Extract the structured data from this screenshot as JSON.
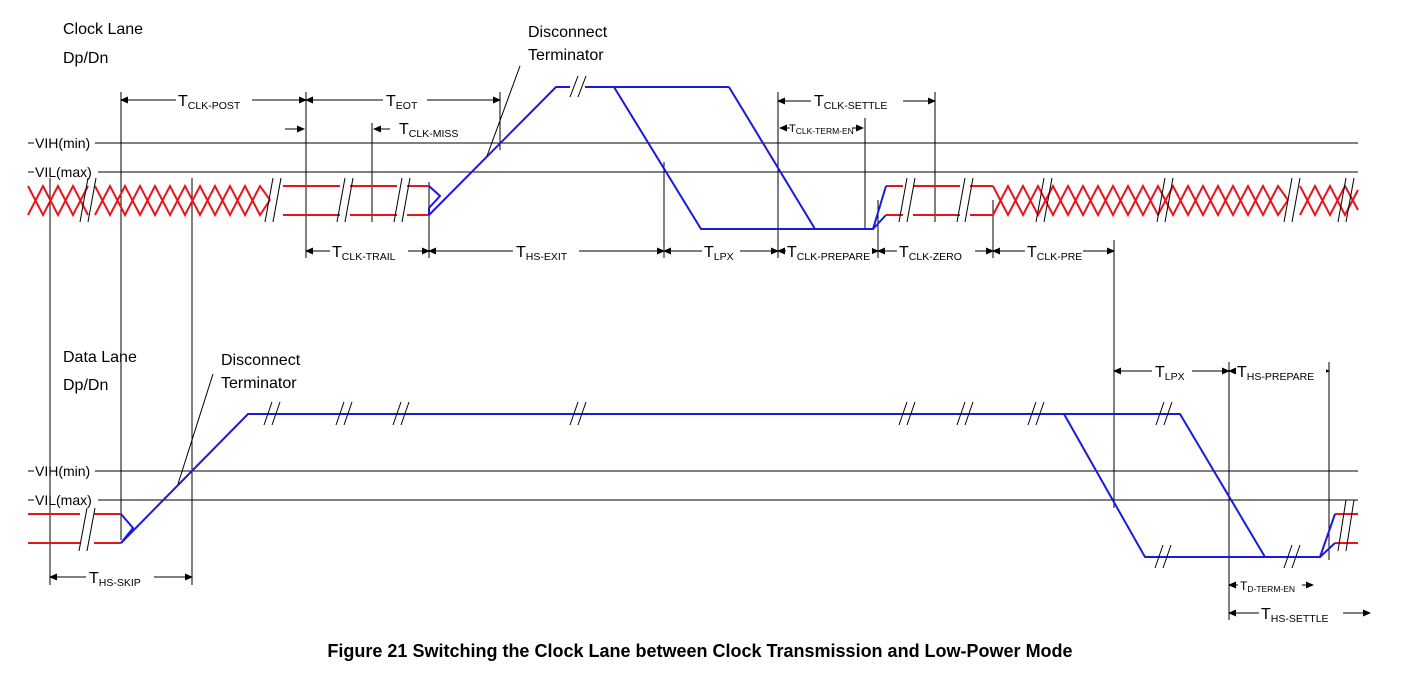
{
  "figure": {
    "caption": "Figure 21 Switching the Clock Lane between Clock Transmission and Low-Power Mode"
  },
  "clock_lane": {
    "title_line1": "Clock Lane",
    "title_line2": "Dp/Dn",
    "note_line1": "Disconnect",
    "note_line2": "Terminator"
  },
  "data_lane": {
    "title_line1": "Data Lane",
    "title_line2": "Dp/Dn",
    "note_line1": "Disconnect",
    "note_line2": "Terminator"
  },
  "levels": {
    "vih": "VIH(min)",
    "vil": "VIL(max)"
  },
  "timings": {
    "clk_post": "CLK-POST",
    "eot": "EOT",
    "clk_miss": "CLK-MISS",
    "clk_settle": "CLK-SETTLE",
    "clk_term_en": "CLK-TERM-EN",
    "clk_trail": "CLK-TRAIL",
    "hs_exit": "HS-EXIT",
    "lpx": "LPX",
    "clk_prepare": "CLK-PREPARE",
    "clk_zero": "CLK-ZERO",
    "clk_pre": "CLK-PRE",
    "lpx_data": "LPX",
    "hs_prepare": "HS-PREPARE",
    "hs_skip": "HS-SKIP",
    "d_term_en": "D-TERM-EN",
    "hs_settle": "HS-SETTLE"
  },
  "t_symbol": "T",
  "colors": {
    "hs_signal": "#e8141b",
    "lp_signal": "#1a1adb",
    "lines": "#000000"
  }
}
